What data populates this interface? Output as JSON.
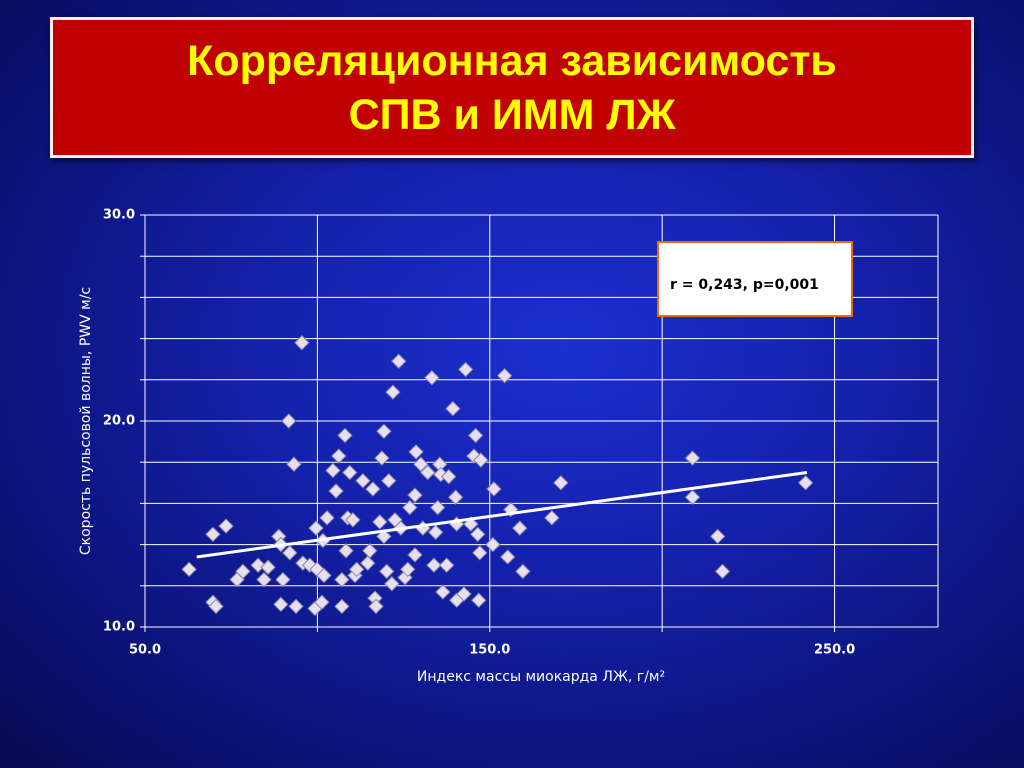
{
  "chart_data": {
    "type": "scatter",
    "title": "Корреляционная зависимость СПВ и ИММ ЛЖ",
    "xlabel": "Индекс массы миокарда ЛЖ, г/м²",
    "ylabel": "Скорость пульсовой волны, PWV м/с",
    "annotation": "r = 0,243, p=0,001",
    "marker_color": "#e6e0ee",
    "trendline_color": "#ffffff",
    "grid": true,
    "xlim": [
      50,
      280
    ],
    "ylim": [
      10,
      30
    ],
    "xticks": [
      {
        "value": 50,
        "label": "50.0"
      },
      {
        "value": 100,
        "label": null
      },
      {
        "value": 150,
        "label": "150.0"
      },
      {
        "value": 200,
        "label": null
      },
      {
        "value": 250,
        "label": "250.0"
      }
    ],
    "yticks": [
      {
        "value": 10,
        "label": "10.0"
      },
      {
        "value": 12,
        "label": null
      },
      {
        "value": 14,
        "label": null
      },
      {
        "value": 16,
        "label": null
      },
      {
        "value": 18,
        "label": null
      },
      {
        "value": 20,
        "label": "20.0"
      },
      {
        "value": 22,
        "label": null
      },
      {
        "value": 24,
        "label": null
      },
      {
        "value": 26,
        "label": null
      },
      {
        "value": 28,
        "label": null
      },
      {
        "value": 30,
        "label": "30.0"
      }
    ],
    "x": [
      62.8,
      69.7,
      73.5,
      69.7,
      70.6,
      76.7,
      78.4,
      82.8,
      84.5,
      85.7,
      88.8,
      89.4,
      90.0,
      89.4,
      91.7,
      92.0,
      93.2,
      93.8,
      95.5,
      95.8,
      97.8,
      99.6,
      99.9,
      99.3,
      101.3,
      101.6,
      101.9,
      102.8,
      104.5,
      105.4,
      106.2,
      107.1,
      107.1,
      108.0,
      108.3,
      108.8,
      109.4,
      110.3,
      110.9,
      111.4,
      113.2,
      114.6,
      115.2,
      116.1,
      116.7,
      117.0,
      118.1,
      118.7,
      119.3,
      119.3,
      120.1,
      120.7,
      121.6,
      121.9,
      122.5,
      123.6,
      124.2,
      125.4,
      126.2,
      126.8,
      128.3,
      128.3,
      128.6,
      130.0,
      130.6,
      132.0,
      133.2,
      133.8,
      134.3,
      134.9,
      135.5,
      135.8,
      136.4,
      137.5,
      138.1,
      139.3,
      140.1,
      140.4,
      140.4,
      142.5,
      143.0,
      144.5,
      145.4,
      145.9,
      146.5,
      146.8,
      147.1,
      147.4,
      150.9,
      151.2,
      154.3,
      155.2,
      156.1,
      158.7,
      159.6,
      168.0,
      170.6,
      208.8,
      208.8,
      216.1,
      217.5,
      241.6
    ],
    "values": [
      12.8,
      14.5,
      14.9,
      11.2,
      11.0,
      12.3,
      12.7,
      13.0,
      12.3,
      12.9,
      14.4,
      14.0,
      12.3,
      11.1,
      20.0,
      13.6,
      17.9,
      11.0,
      23.8,
      13.1,
      13.0,
      14.8,
      12.8,
      10.9,
      11.2,
      14.2,
      12.5,
      15.3,
      17.6,
      16.6,
      18.3,
      12.3,
      11.0,
      19.3,
      13.7,
      15.3,
      17.5,
      15.2,
      12.5,
      12.8,
      17.1,
      13.1,
      13.7,
      16.7,
      11.4,
      11.0,
      15.1,
      18.2,
      19.5,
      14.4,
      12.7,
      17.1,
      12.1,
      21.4,
      15.2,
      22.9,
      14.8,
      12.4,
      12.8,
      15.8,
      16.4,
      13.5,
      18.5,
      17.9,
      14.8,
      17.5,
      22.1,
      13.0,
      14.6,
      15.8,
      17.9,
      17.4,
      11.7,
      13.0,
      17.3,
      20.6,
      16.3,
      15.0,
      11.3,
      11.6,
      22.5,
      15.0,
      18.3,
      19.3,
      14.5,
      11.3,
      13.6,
      18.1,
      14.0,
      16.7,
      22.2,
      13.4,
      15.7,
      14.8,
      12.7,
      15.3,
      17.0,
      18.2,
      16.3,
      14.4,
      12.7,
      17.0
    ],
    "trendline": {
      "x": [
        65,
        242
      ],
      "y": [
        13.4,
        17.5
      ]
    }
  }
}
